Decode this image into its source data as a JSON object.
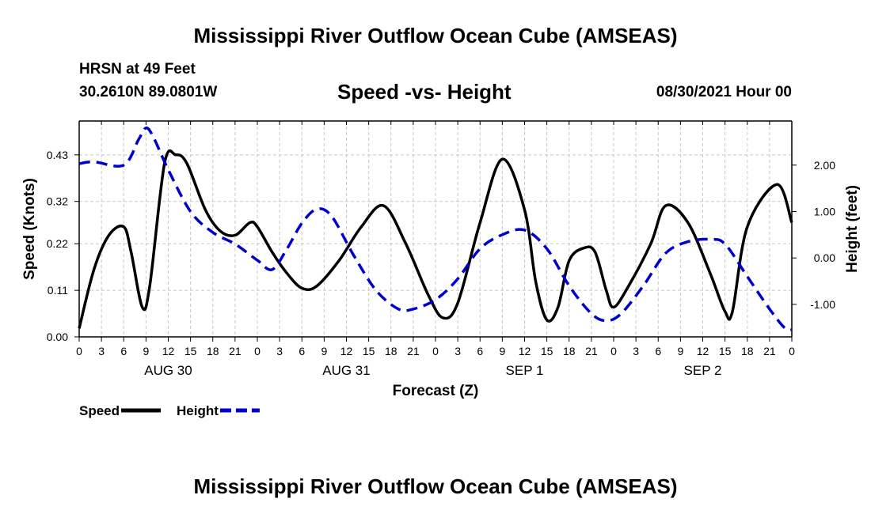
{
  "header": {
    "title": "Mississippi River Outflow Ocean Cube (AMSEAS)",
    "station": "HRSN at 49 Feet",
    "coords": "30.2610N  89.0801W",
    "subtitle": "Speed -vs- Height",
    "date": "08/30/2021 Hour 00"
  },
  "footer": {
    "title": "Mississippi River Outflow Ocean Cube (AMSEAS)"
  },
  "chart_data": {
    "type": "line",
    "title": "Speed -vs- Height",
    "xlabel": "Forecast (Z)",
    "ylabel_left": "Speed (Knots)",
    "ylabel_right": "Height (feet)",
    "x_unit": "hours from 08/30/2021 00Z",
    "xlim": [
      0,
      96
    ],
    "ylim_left": [
      0,
      0.51
    ],
    "ylim_right": [
      -1.7,
      2.95
    ],
    "grid": true,
    "x_tick_labels": [
      "0",
      "3",
      "6",
      "9",
      "12",
      "15",
      "18",
      "21",
      "0",
      "3",
      "6",
      "9",
      "12",
      "15",
      "18",
      "21",
      "0",
      "3",
      "6",
      "9",
      "12",
      "15",
      "18",
      "21",
      "0",
      "3",
      "6",
      "9",
      "12",
      "15",
      "18",
      "21",
      "0"
    ],
    "day_labels": [
      {
        "x": 12,
        "label": "AUG 30"
      },
      {
        "x": 36,
        "label": "AUG 31"
      },
      {
        "x": 60,
        "label": "SEP 1"
      },
      {
        "x": 84,
        "label": "SEP 2"
      }
    ],
    "y_ticks_left": [
      {
        "value": 0.0,
        "label": "0.00"
      },
      {
        "value": 0.11,
        "label": "0.11"
      },
      {
        "value": 0.22,
        "label": "0.22"
      },
      {
        "value": 0.32,
        "label": "0.32"
      },
      {
        "value": 0.43,
        "label": "0.43"
      }
    ],
    "y_ticks_right": [
      {
        "value": -1.0,
        "label": "-1.00"
      },
      {
        "value": 0.0,
        "label": "0.00"
      },
      {
        "value": 1.0,
        "label": "1.00"
      },
      {
        "value": 2.0,
        "label": "2.00"
      }
    ],
    "series": [
      {
        "name": "Speed",
        "axis": "left",
        "color": "#000000",
        "dash": "solid",
        "points": [
          [
            0,
            0.02
          ],
          [
            2,
            0.16
          ],
          [
            4,
            0.24
          ],
          [
            6,
            0.26
          ],
          [
            7,
            0.2
          ],
          [
            8.5,
            0.07
          ],
          [
            9.5,
            0.12
          ],
          [
            11.5,
            0.41
          ],
          [
            13,
            0.43
          ],
          [
            14.5,
            0.41
          ],
          [
            17,
            0.3
          ],
          [
            19,
            0.25
          ],
          [
            21,
            0.24
          ],
          [
            23,
            0.27
          ],
          [
            24,
            0.26
          ],
          [
            26,
            0.2
          ],
          [
            28,
            0.15
          ],
          [
            30,
            0.115
          ],
          [
            32,
            0.12
          ],
          [
            35,
            0.18
          ],
          [
            38,
            0.26
          ],
          [
            41,
            0.31
          ],
          [
            44,
            0.22
          ],
          [
            47,
            0.1
          ],
          [
            49,
            0.045
          ],
          [
            51,
            0.08
          ],
          [
            54,
            0.27
          ],
          [
            57,
            0.42
          ],
          [
            60,
            0.3
          ],
          [
            61.5,
            0.13
          ],
          [
            63,
            0.04
          ],
          [
            64.5,
            0.07
          ],
          [
            66,
            0.18
          ],
          [
            68,
            0.21
          ],
          [
            69.5,
            0.2
          ],
          [
            71,
            0.11
          ],
          [
            72,
            0.07
          ],
          [
            74,
            0.12
          ],
          [
            77,
            0.22
          ],
          [
            79,
            0.31
          ],
          [
            82,
            0.27
          ],
          [
            85,
            0.15
          ],
          [
            87,
            0.06
          ],
          [
            88,
            0.06
          ],
          [
            90,
            0.26
          ],
          [
            94,
            0.36
          ],
          [
            96,
            0.27
          ]
        ]
      },
      {
        "name": "Height",
        "axis": "right",
        "color": "#0000cc",
        "dash": "dashed",
        "points": [
          [
            0,
            2.03
          ],
          [
            2,
            2.07
          ],
          [
            6,
            2.0
          ],
          [
            8,
            2.55
          ],
          [
            9,
            2.8
          ],
          [
            10,
            2.6
          ],
          [
            12,
            1.9
          ],
          [
            15,
            1.0
          ],
          [
            18,
            0.55
          ],
          [
            21,
            0.3
          ],
          [
            24,
            -0.05
          ],
          [
            26,
            -0.25
          ],
          [
            28,
            0.2
          ],
          [
            30,
            0.75
          ],
          [
            32,
            1.05
          ],
          [
            34,
            0.9
          ],
          [
            37,
            0.05
          ],
          [
            40,
            -0.7
          ],
          [
            43,
            -1.1
          ],
          [
            45,
            -1.1
          ],
          [
            48,
            -0.9
          ],
          [
            51,
            -0.45
          ],
          [
            54,
            0.2
          ],
          [
            57,
            0.5
          ],
          [
            60,
            0.6
          ],
          [
            63,
            0.2
          ],
          [
            66,
            -0.6
          ],
          [
            69,
            -1.2
          ],
          [
            71,
            -1.35
          ],
          [
            73,
            -1.2
          ],
          [
            76,
            -0.6
          ],
          [
            79,
            0.1
          ],
          [
            82,
            0.35
          ],
          [
            85,
            0.4
          ],
          [
            87,
            0.3
          ],
          [
            90,
            -0.4
          ],
          [
            93,
            -1.1
          ],
          [
            95,
            -1.5
          ],
          [
            96,
            -1.55
          ]
        ]
      }
    ],
    "legend": [
      {
        "label": "Speed",
        "color": "#000000",
        "dash": "solid"
      },
      {
        "label": "Height",
        "color": "#0000cc",
        "dash": "dashed"
      }
    ]
  }
}
